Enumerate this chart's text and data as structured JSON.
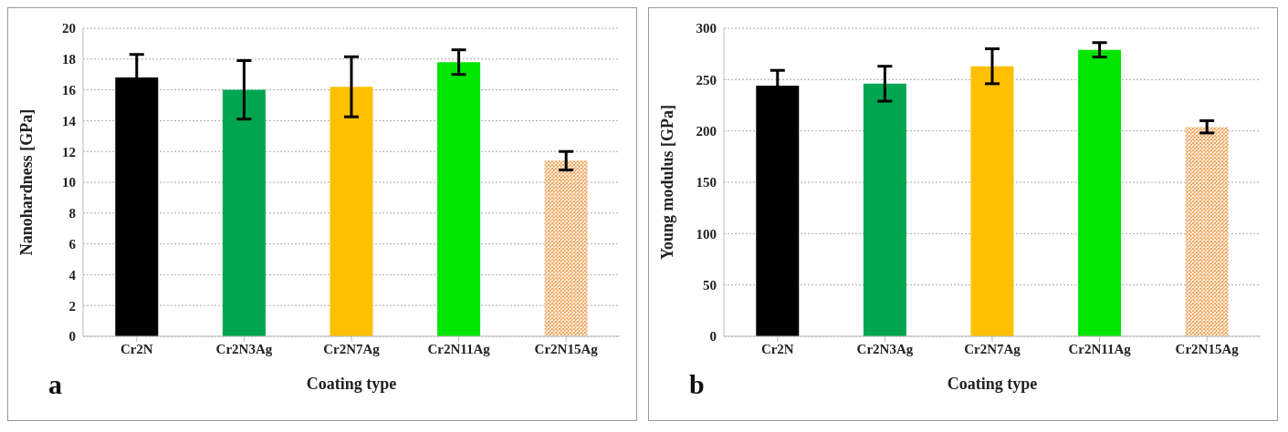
{
  "chart_data": [
    {
      "type": "bar",
      "xlabel": "Coating type",
      "ylabel": "Nanohardness  [GPa]",
      "categories": [
        "Cr2N",
        "Cr2N3Ag",
        "Cr2N7Ag",
        "Cr2N11Ag",
        "Cr2N15Ag"
      ],
      "values": [
        16.8,
        16.0,
        16.2,
        17.8,
        11.4
      ],
      "errors": [
        1.5,
        1.9,
        1.95,
        0.8,
        0.6
      ],
      "colors": [
        "#000000",
        "#00a550",
        "#ffc000",
        "#00e600",
        "#f2a860"
      ],
      "ylim": [
        0,
        20
      ],
      "yticks": [
        0,
        2,
        4,
        6,
        8,
        10,
        12,
        14,
        16,
        18,
        20
      ],
      "grid": "y",
      "annotations": [
        "a"
      ]
    },
    {
      "type": "bar",
      "xlabel": "Coating type",
      "ylabel": "Young modulus [GPa]",
      "categories": [
        "Cr2N",
        "Cr2N3Ag",
        "Cr2N7Ag",
        "Cr2N11Ag",
        "Cr2N15Ag"
      ],
      "values": [
        244,
        246,
        263,
        279,
        204
      ],
      "errors": [
        15,
        17,
        17,
        7,
        6
      ],
      "colors": [
        "#000000",
        "#00a550",
        "#ffc000",
        "#00e600",
        "#f2a860"
      ],
      "ylim": [
        0,
        300
      ],
      "yticks": [
        0,
        50,
        100,
        150,
        200,
        250,
        300
      ],
      "grid": "y",
      "annotations": [
        "b"
      ]
    }
  ]
}
